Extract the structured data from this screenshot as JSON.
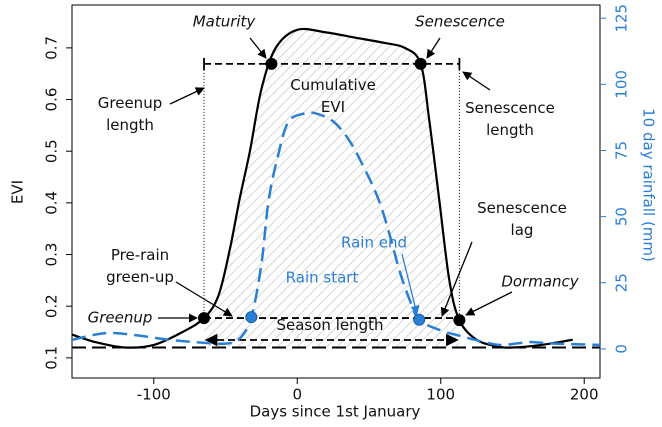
{
  "chart_data": {
    "type": "line",
    "xlabel": "Days since 1st January",
    "ylabel": "EVI",
    "y2label": "10 day rainfall (mm)",
    "xlim": [
      -157,
      211
    ],
    "xticks": [
      -100,
      0,
      100,
      200
    ],
    "ylim": [
      0.061,
      0.783
    ],
    "yticks": [
      0.1,
      0.2,
      0.3,
      0.4,
      0.5,
      0.6,
      0.7
    ],
    "y2lim": [
      -11,
      130
    ],
    "y2ticks": [
      0,
      25,
      50,
      75,
      100,
      125
    ],
    "baseline": 0.12,
    "series": [
      {
        "name": "EVI",
        "color": "#000000",
        "dashed": false,
        "x": [
          -157,
          -140,
          -120,
          -100,
          -80,
          -65,
          -55,
          -47,
          -40,
          -33,
          -25,
          -15,
          0,
          20,
          40,
          60,
          75,
          86,
          92,
          99,
          106,
          113,
          125,
          140,
          150,
          170,
          192
        ],
        "values": [
          0.145,
          0.13,
          0.12,
          0.125,
          0.15,
          0.177,
          0.22,
          0.31,
          0.41,
          0.5,
          0.62,
          0.7,
          0.735,
          0.73,
          0.72,
          0.71,
          0.7,
          0.669,
          0.56,
          0.405,
          0.25,
          0.173,
          0.135,
          0.122,
          0.12,
          0.125,
          0.135
        ]
      },
      {
        "name": "10 day rainfall",
        "color": "#2a7fd4",
        "dashed": true,
        "axis": "y2",
        "x": [
          -157,
          -140,
          -128,
          -110,
          -90,
          -70,
          -50,
          -40,
          -32,
          -25,
          -20,
          -13,
          -6,
          5,
          13,
          25,
          36,
          47,
          57,
          65,
          71,
          78,
          85,
          100,
          113,
          127,
          141,
          155,
          162,
          180,
          211
        ],
        "values": [
          3.4,
          5.5,
          6,
          5,
          3.5,
          2.5,
          2,
          4,
          12,
          32,
          56,
          74,
          86,
          89,
          89,
          86,
          79,
          68,
          56,
          42,
          30,
          19,
          11,
          7,
          5,
          3,
          1.5,
          2.2,
          2.6,
          2,
          1.5
        ]
      }
    ],
    "points": [
      {
        "name": "Greenup",
        "x": -65,
        "y": 0.177
      },
      {
        "name": "Maturity",
        "x": -18,
        "y": 0.669
      },
      {
        "name": "Senescence",
        "x": 86,
        "y": 0.669
      },
      {
        "name": "Dormancy",
        "x": 113,
        "y": 0.173
      },
      {
        "name": "Rain start",
        "x": -32,
        "y": 12,
        "axis": "y2"
      },
      {
        "name": "Rain end",
        "x": 85,
        "y": 11,
        "axis": "y2"
      }
    ],
    "annotations": [
      {
        "lines": [
          "Greenup",
          "length"
        ]
      },
      {
        "lines": [
          "Cumulative",
          "EVI"
        ]
      },
      {
        "lines": [
          "Senescence",
          "length"
        ]
      },
      {
        "lines": [
          "Pre-rain",
          "green-up"
        ]
      },
      {
        "lines": [
          "Senescence",
          "lag"
        ]
      },
      {
        "lines": [
          "Season length"
        ]
      }
    ]
  }
}
